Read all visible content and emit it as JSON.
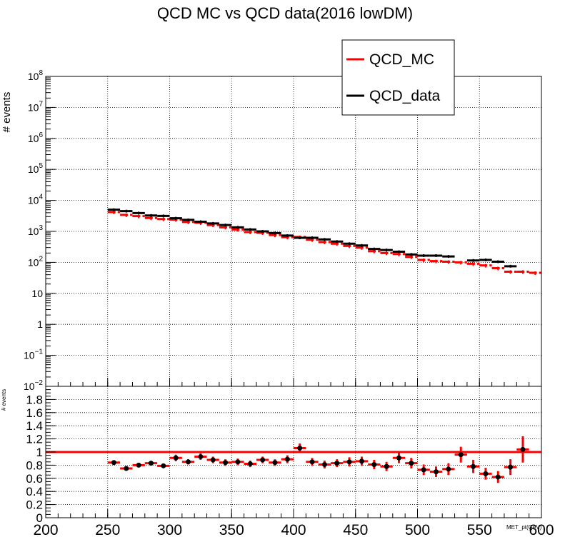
{
  "chart_data": {
    "type": "line",
    "title": "QCD MC vs QCD data(2016 lowDM)",
    "legend": {
      "placement": "top-right",
      "entries": [
        {
          "label": "QCD_MC",
          "color": "#ff0000"
        },
        {
          "label": "QCD_data",
          "color": "#000000"
        }
      ]
    },
    "x": {
      "label": "MET_pt(GeV)",
      "range": [
        200,
        600
      ],
      "ticks": [
        "200",
        "250",
        "300",
        "350",
        "400",
        "450",
        "500",
        "550",
        "600"
      ],
      "bin_width": 10,
      "bin_centers": [
        255,
        265,
        275,
        285,
        295,
        305,
        315,
        325,
        335,
        345,
        355,
        365,
        375,
        385,
        395,
        405,
        415,
        425,
        435,
        445,
        455,
        465,
        475,
        485,
        495,
        505,
        515,
        525,
        535,
        545,
        555,
        565,
        575,
        585,
        595
      ]
    },
    "top_panel": {
      "ylabel": "# events",
      "yscale": "log",
      "yrange": [
        0.01,
        100000000
      ],
      "yticks": [
        "10^-2",
        "10^-1",
        "1",
        "10",
        "10^2",
        "10^3",
        "10^4",
        "10^5",
        "10^6",
        "10^7",
        "10^8"
      ],
      "grid": true,
      "series": [
        {
          "name": "QCD_MC",
          "color": "#ff0000",
          "values": [
            4200,
            3400,
            3100,
            2700,
            2500,
            2400,
            2000,
            1900,
            1600,
            1350,
            1150,
            950,
            900,
            760,
            650,
            660,
            540,
            450,
            400,
            340,
            300,
            230,
            200,
            185,
            150,
            120,
            110,
            105,
            100,
            90,
            80,
            65,
            50,
            50,
            46
          ]
        },
        {
          "name": "QCD_data",
          "color": "#000000",
          "values": [
            5000,
            4500,
            3900,
            3250,
            3150,
            2650,
            2350,
            2050,
            1800,
            1600,
            1350,
            1150,
            1000,
            880,
            730,
            620,
            620,
            550,
            470,
            400,
            350,
            270,
            250,
            220,
            180,
            165,
            165,
            155,
            null,
            115,
            120,
            105,
            75,
            null,
            null
          ]
        }
      ]
    },
    "ratio_panel": {
      "ylabel": "# events",
      "yrange": [
        0,
        2
      ],
      "yticks": [
        "0",
        "0.2",
        "0.4",
        "0.6",
        "0.8",
        "1",
        "1.2",
        "1.4",
        "1.6",
        "1.8"
      ],
      "reference_line": 1,
      "grid": true,
      "points": [
        {
          "x": 255,
          "y": 0.84,
          "err": 0.03
        },
        {
          "x": 265,
          "y": 0.75,
          "err": 0.03
        },
        {
          "x": 275,
          "y": 0.8,
          "err": 0.03
        },
        {
          "x": 285,
          "y": 0.83,
          "err": 0.03
        },
        {
          "x": 295,
          "y": 0.79,
          "err": 0.03
        },
        {
          "x": 305,
          "y": 0.91,
          "err": 0.05
        },
        {
          "x": 315,
          "y": 0.85,
          "err": 0.04
        },
        {
          "x": 325,
          "y": 0.93,
          "err": 0.05
        },
        {
          "x": 335,
          "y": 0.88,
          "err": 0.05
        },
        {
          "x": 345,
          "y": 0.84,
          "err": 0.05
        },
        {
          "x": 355,
          "y": 0.85,
          "err": 0.05
        },
        {
          "x": 365,
          "y": 0.82,
          "err": 0.05
        },
        {
          "x": 375,
          "y": 0.88,
          "err": 0.05
        },
        {
          "x": 385,
          "y": 0.84,
          "err": 0.05
        },
        {
          "x": 395,
          "y": 0.89,
          "err": 0.06
        },
        {
          "x": 405,
          "y": 1.06,
          "err": 0.07
        },
        {
          "x": 415,
          "y": 0.85,
          "err": 0.06
        },
        {
          "x": 425,
          "y": 0.81,
          "err": 0.06
        },
        {
          "x": 435,
          "y": 0.83,
          "err": 0.06
        },
        {
          "x": 445,
          "y": 0.85,
          "err": 0.07
        },
        {
          "x": 455,
          "y": 0.86,
          "err": 0.07
        },
        {
          "x": 465,
          "y": 0.81,
          "err": 0.07
        },
        {
          "x": 475,
          "y": 0.78,
          "err": 0.07
        },
        {
          "x": 485,
          "y": 0.91,
          "err": 0.08
        },
        {
          "x": 495,
          "y": 0.83,
          "err": 0.08
        },
        {
          "x": 505,
          "y": 0.73,
          "err": 0.08
        },
        {
          "x": 515,
          "y": 0.7,
          "err": 0.08
        },
        {
          "x": 525,
          "y": 0.74,
          "err": 0.09
        },
        {
          "x": 535,
          "y": 0.96,
          "err": 0.12
        },
        {
          "x": 545,
          "y": 0.78,
          "err": 0.1
        },
        {
          "x": 555,
          "y": 0.67,
          "err": 0.09
        },
        {
          "x": 565,
          "y": 0.62,
          "err": 0.09
        },
        {
          "x": 575,
          "y": 0.77,
          "err": 0.12
        },
        {
          "x": 585,
          "y": 1.04,
          "err": 0.2
        }
      ]
    }
  }
}
